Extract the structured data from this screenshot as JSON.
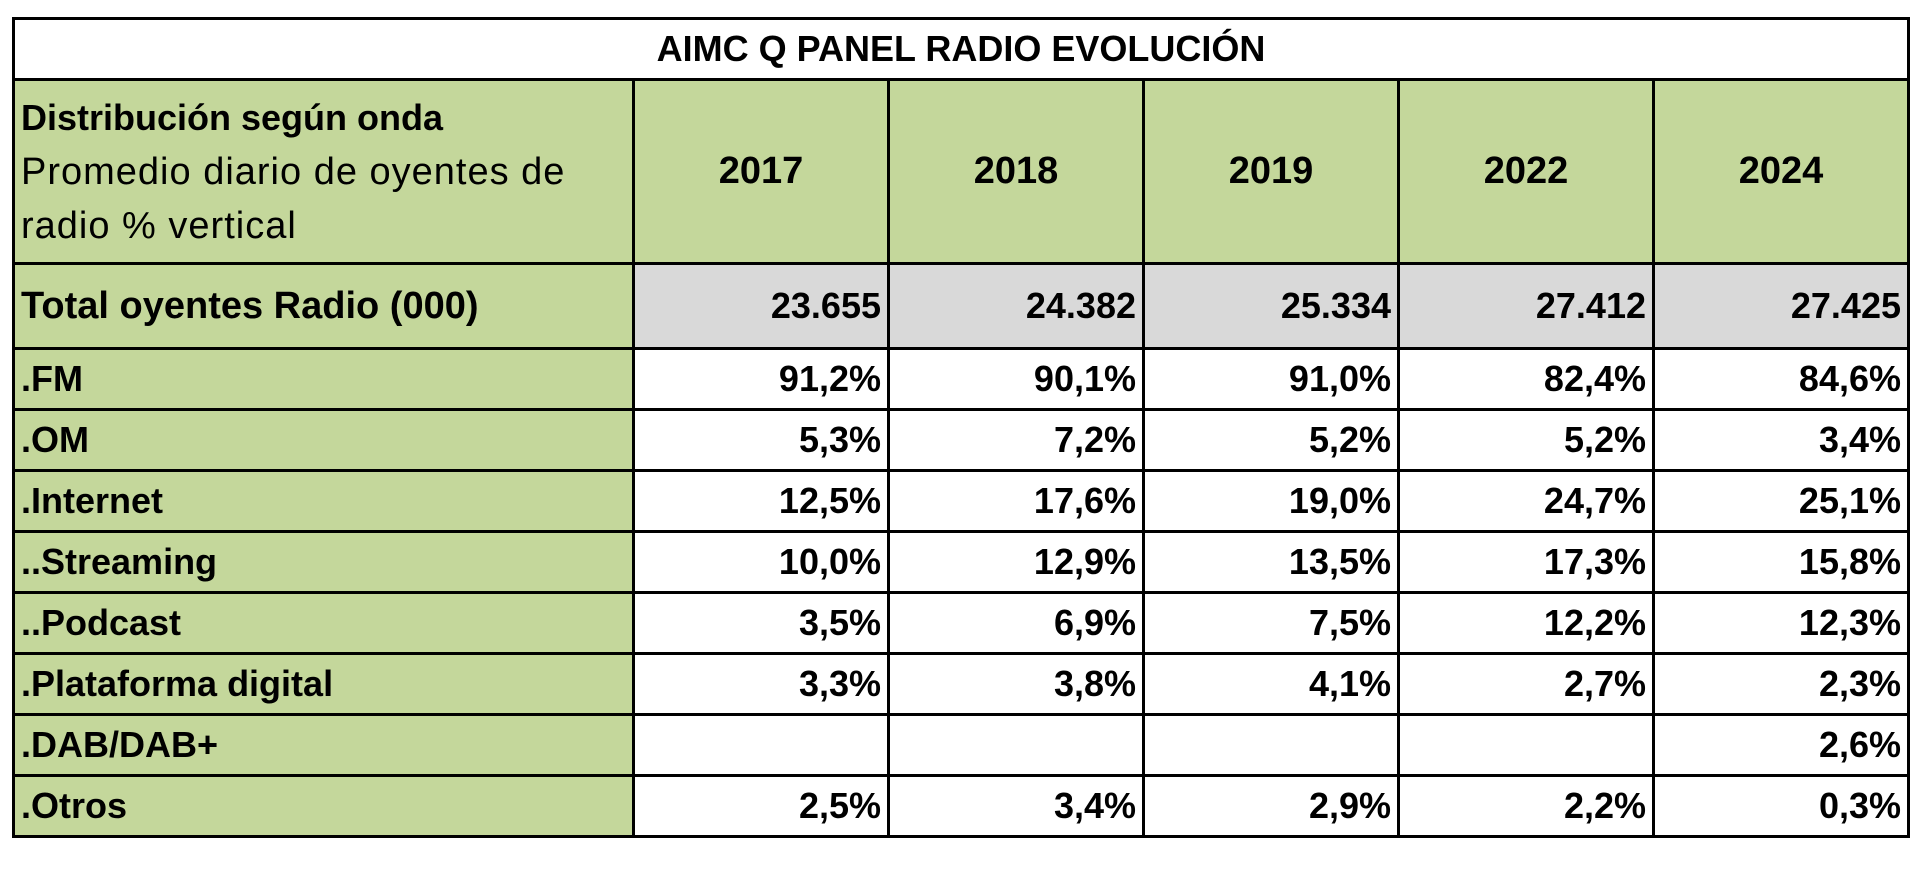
{
  "table": {
    "title": "AIMC Q PANEL RADIO EVOLUCIÓN",
    "header": {
      "label": "Distribución según onda",
      "sublabel": "Promedio diario de oyentes de radio % vertical",
      "years": [
        "2017",
        "2018",
        "2019",
        "2022",
        "2024"
      ]
    },
    "total": {
      "label": "Total oyentes Radio (000)",
      "values": [
        "23.655",
        "24.382",
        "25.334",
        "27.412",
        "27.425"
      ]
    },
    "rows": [
      {
        "label": ".FM",
        "values": [
          "91,2%",
          "90,1%",
          "91,0%",
          "82,4%",
          "84,6%"
        ]
      },
      {
        "label": ".OM",
        "values": [
          "5,3%",
          "7,2%",
          "5,2%",
          "5,2%",
          "3,4%"
        ]
      },
      {
        "label": ".Internet",
        "values": [
          "12,5%",
          "17,6%",
          "19,0%",
          "24,7%",
          "25,1%"
        ]
      },
      {
        "label": "..Streaming",
        "values": [
          "10,0%",
          "12,9%",
          "13,5%",
          "17,3%",
          "15,8%"
        ]
      },
      {
        "label": "..Podcast",
        "values": [
          "3,5%",
          "6,9%",
          "7,5%",
          "12,2%",
          "12,3%"
        ]
      },
      {
        "label": ".Plataforma digital",
        "values": [
          "3,3%",
          "3,8%",
          "4,1%",
          "2,7%",
          "2,3%"
        ]
      },
      {
        "label": ".DAB/DAB+",
        "values": [
          null,
          null,
          null,
          null,
          "2,6%"
        ]
      },
      {
        "label": ".Otros",
        "values": [
          "2,5%",
          "3,4%",
          "2,9%",
          "2,2%",
          "0,3%"
        ]
      }
    ]
  }
}
